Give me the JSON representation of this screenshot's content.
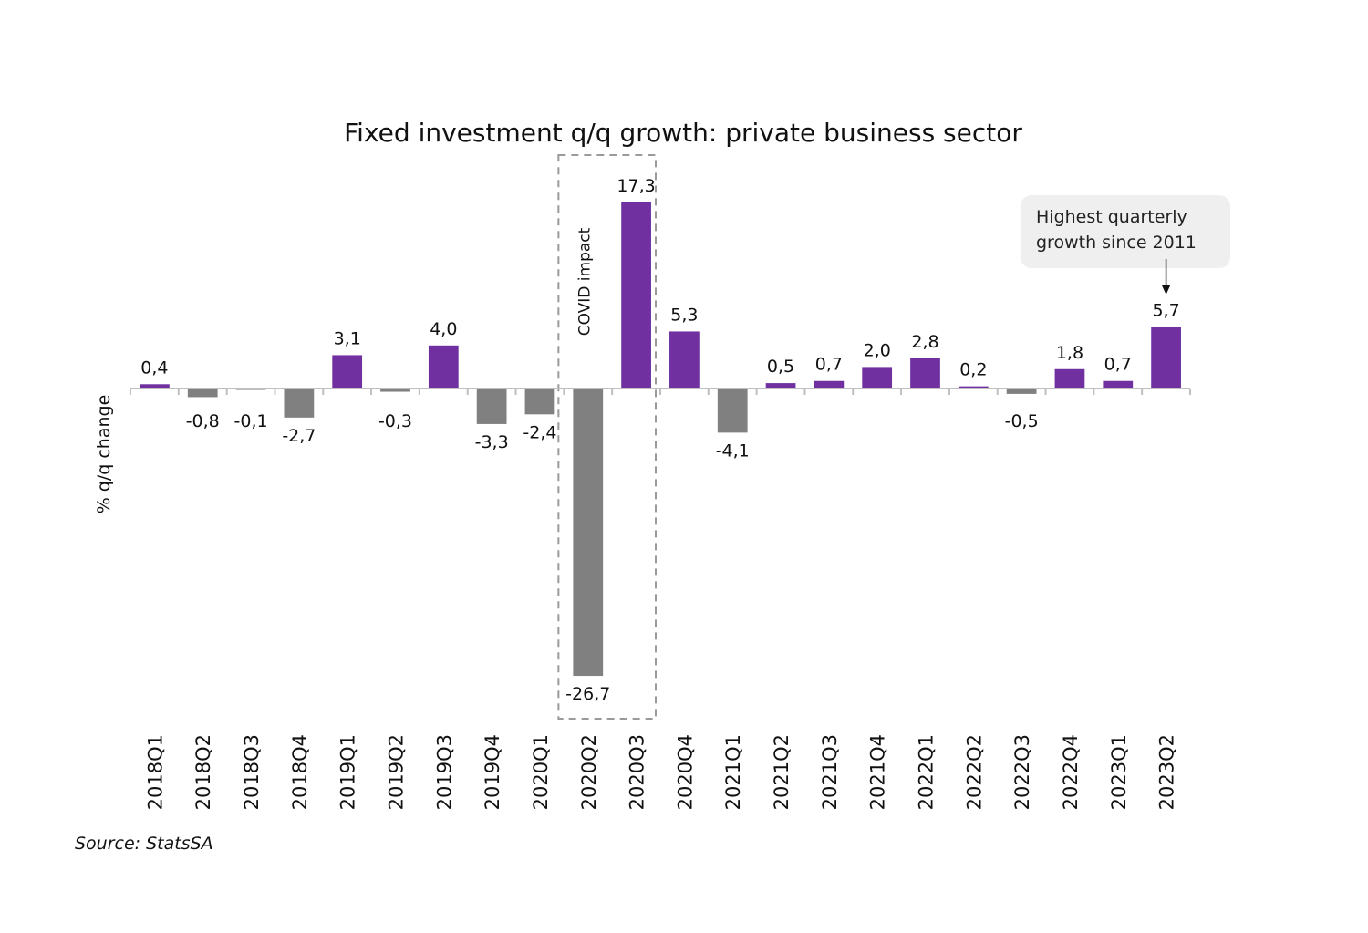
{
  "chart_data": {
    "type": "bar",
    "title": "Fixed investment q/q growth: private business sector",
    "xlabel": "",
    "ylabel": "% q/q change",
    "categories": [
      "2018Q1",
      "2018Q2",
      "2018Q3",
      "2018Q4",
      "2019Q1",
      "2019Q2",
      "2019Q3",
      "2019Q4",
      "2020Q1",
      "2020Q2",
      "2020Q3",
      "2020Q4",
      "2021Q1",
      "2021Q2",
      "2021Q3",
      "2021Q4",
      "2022Q1",
      "2022Q2",
      "2022Q3",
      "2022Q4",
      "2023Q1",
      "2023Q2"
    ],
    "values": [
      0.4,
      -0.8,
      -0.1,
      -2.7,
      3.1,
      -0.3,
      4.0,
      -3.3,
      -2.4,
      -26.7,
      17.3,
      5.3,
      -4.1,
      0.5,
      0.7,
      2.0,
      2.8,
      0.2,
      -0.5,
      1.8,
      0.7,
      5.7
    ],
    "value_labels": [
      "0,4",
      "-0,8",
      "-0,1",
      "-2,7",
      "3,1",
      "-0,3",
      "4,0",
      "-3,3",
      "-2,4",
      "-26,7",
      "17,3",
      "5,3",
      "-4,1",
      "0,5",
      "0,7",
      "2,0",
      "2,8",
      "0,2",
      "-0,5",
      "1,8",
      "0,7",
      "5,7"
    ],
    "ylim": [
      -26.7,
      17.3
    ],
    "grid": false,
    "colors": {
      "positive": "#7030a0",
      "negative": "#808080"
    },
    "annotations": {
      "covid_box": {
        "label": "COVID impact",
        "categories": [
          "2020Q2",
          "2020Q3"
        ]
      },
      "callout": {
        "lines": [
          "Highest quarterly",
          "growth since 2011"
        ],
        "target_category": "2023Q2"
      }
    }
  },
  "source": "Source: StatsSA"
}
